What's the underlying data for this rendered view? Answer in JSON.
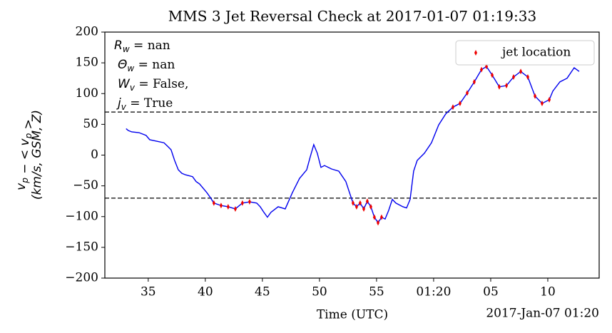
{
  "chart_data": {
    "type": "line",
    "title": "MMS 3 Jet Reversal Check at 2017-01-07 01:19:33",
    "xlabel": "Time (UTC)",
    "x_offset_label": "2017-Jan-07 01:20",
    "ylabel": {
      "line1": [
        {
          "text": "v",
          "sub": "p"
        },
        {
          "text": " − < v",
          "sub": "p"
        },
        {
          "text": " >"
        }
      ],
      "line2": "(km/s, GSM, Z)"
    },
    "annotations": [
      {
        "symbol": "R",
        "sub": "w",
        "text": " = nan"
      },
      {
        "symbol": "Θ",
        "sub": "w",
        "text": " = nan"
      },
      {
        "symbol": "W",
        "sub": "v",
        "text": " = False,"
      },
      {
        "symbol": "j",
        "sub": "v",
        "text": " = True"
      }
    ],
    "xlim": [
      31.2,
      74.5
    ],
    "ylim": [
      -200,
      200
    ],
    "xticks": [
      35,
      40,
      45,
      50,
      55,
      {
        "value": 60,
        "label": "01:20"
      },
      {
        "value": 65,
        "label": "05"
      },
      {
        "value": 70,
        "label": "10"
      }
    ],
    "yticks": [
      {
        "value": -200,
        "label": "−200"
      },
      {
        "value": -150,
        "label": "−150"
      },
      {
        "value": -100,
        "label": "−100"
      },
      {
        "value": -50,
        "label": "−50"
      },
      0,
      50,
      100,
      150,
      200
    ],
    "hlines": [
      70,
      -70
    ],
    "legend": "upper right",
    "series": [
      {
        "color": "#0000ee",
        "style": "line",
        "x": [
          33.06,
          33.25,
          33.56,
          34.19,
          34.81,
          35.13,
          35.75,
          36.38,
          36.69,
          37,
          37.31,
          37.63,
          37.94,
          38.25,
          38.88,
          39.19,
          39.5,
          40.13,
          40.44,
          40.75,
          41.38,
          42,
          42.63,
          43.25,
          43.88,
          44.5,
          44.81,
          45.13,
          45.44,
          45.75,
          46.38,
          47,
          47.63,
          48.25,
          48.88,
          49.19,
          49.5,
          49.81,
          50.13,
          50.44,
          51.06,
          51.69,
          52.31,
          52.63,
          52.94,
          53.25,
          53.56,
          53.88,
          54.19,
          54.5,
          54.81,
          55.13,
          55.44,
          55.75,
          56.06,
          56.38,
          56.69,
          57.31,
          57.63,
          57.94,
          58.25,
          58.56,
          59.19,
          59.81,
          60.44,
          61.06,
          61.69,
          62.31,
          62.94,
          63.56,
          64.19,
          64.63,
          65.13,
          65.75,
          66.38,
          67,
          67.63,
          68.25,
          68.88,
          69.5,
          70.13,
          70.44,
          71.06,
          71.69,
          72.31,
          72.75
        ],
        "values": [
          43,
          40,
          37.7,
          36.5,
          32,
          25,
          22.6,
          20,
          14.5,
          8.7,
          -8.7,
          -23.8,
          -29.6,
          -32,
          -35,
          -43,
          -47,
          -61,
          -69,
          -78,
          -82,
          -84,
          -87.5,
          -78,
          -76,
          -78,
          -84,
          -93,
          -101,
          -93,
          -84,
          -87.5,
          -61,
          -38,
          -24,
          -3,
          17,
          3,
          -20,
          -17,
          -22.6,
          -26,
          -43,
          -61,
          -78,
          -84,
          -78,
          -87.5,
          -75,
          -84,
          -101,
          -110,
          -101,
          -104,
          -90,
          -72,
          -78,
          -84,
          -86,
          -72,
          -26,
          -8.7,
          3,
          20,
          49,
          67,
          78,
          84,
          101,
          119,
          139,
          144,
          130,
          111,
          113,
          127,
          136,
          127,
          96,
          84,
          90,
          104,
          119,
          125,
          142,
          136
        ]
      },
      {
        "name": "jet location",
        "color": "#ee0000",
        "style": "marker",
        "x": [
          40.75,
          41.38,
          42,
          42.63,
          43.25,
          43.88,
          52.94,
          53.25,
          53.56,
          53.88,
          54.19,
          54.5,
          54.81,
          55.13,
          55.44,
          61.69,
          62.31,
          62.94,
          63.56,
          64.19,
          64.63,
          65.13,
          65.75,
          66.38,
          67,
          67.63,
          68.25,
          68.88,
          69.5,
          70.13
        ],
        "values": [
          -78,
          -82,
          -84,
          -87.5,
          -78,
          -76,
          -78,
          -84,
          -78,
          -87.5,
          -75,
          -84,
          -101,
          -110,
          -101,
          78,
          84,
          101,
          119,
          139,
          144,
          130,
          111,
          113,
          127,
          136,
          127,
          96,
          84,
          90
        ]
      }
    ]
  }
}
